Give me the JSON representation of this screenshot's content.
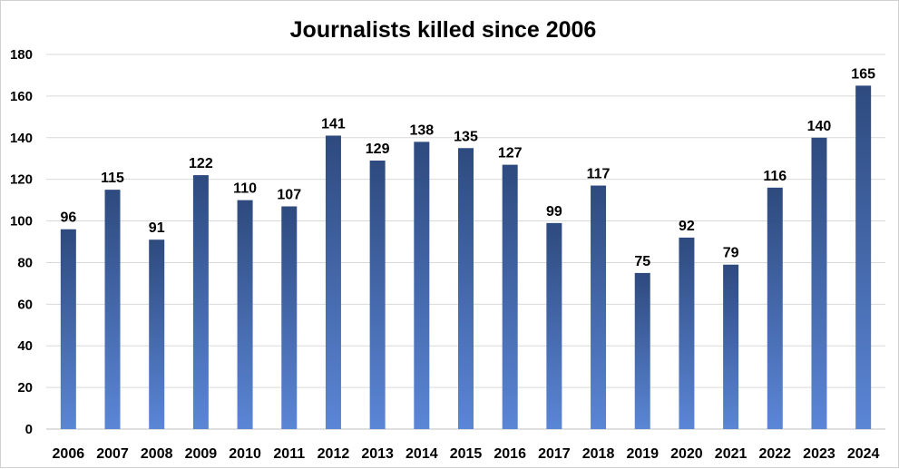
{
  "chart_data": {
    "type": "bar",
    "title": "Journalists killed since 2006",
    "xlabel": "",
    "ylabel": "",
    "categories": [
      "2006",
      "2007",
      "2008",
      "2009",
      "2010",
      "2011",
      "2012",
      "2013",
      "2014",
      "2015",
      "2016",
      "2017",
      "2018",
      "2019",
      "2020",
      "2021",
      "2022",
      "2023",
      "2024"
    ],
    "values": [
      96,
      115,
      91,
      122,
      110,
      107,
      141,
      129,
      138,
      135,
      127,
      99,
      117,
      75,
      92,
      79,
      116,
      140,
      165
    ],
    "ylim": [
      0,
      180
    ],
    "yticks": [
      0,
      20,
      40,
      60,
      80,
      100,
      120,
      140,
      160,
      180
    ],
    "grid": true,
    "legend": "none",
    "bar_gradient": [
      "#2e4a7e",
      "#5b86d6"
    ],
    "data_labels": true
  }
}
